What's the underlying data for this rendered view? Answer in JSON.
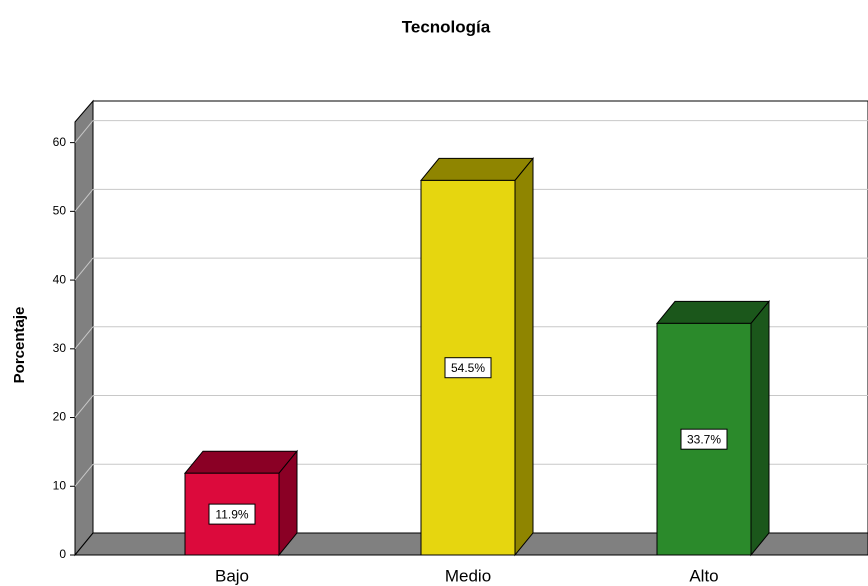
{
  "chart_data": {
    "type": "bar3d",
    "title": "Tecnología",
    "ylabel": "Porcentaje",
    "categories": [
      "Bajo",
      "Medio",
      "Alto"
    ],
    "values": [
      11.9,
      54.5,
      33.7
    ],
    "value_labels": [
      "11.9%",
      "54.5%",
      "33.7%"
    ],
    "colors": [
      "#dc0a3c",
      "#e6d60f",
      "#2b8a2b"
    ],
    "side_colors": [
      "#8a0025",
      "#8f8500",
      "#1b571b"
    ],
    "ylim": [
      0,
      63
    ],
    "yticks": [
      0,
      10,
      20,
      30,
      40,
      50,
      60
    ],
    "grid": true
  }
}
